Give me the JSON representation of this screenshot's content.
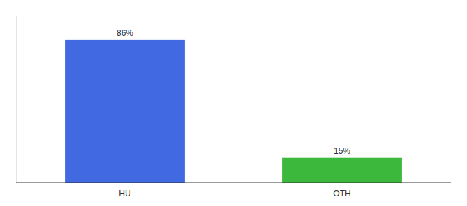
{
  "chart_data": {
    "type": "bar",
    "categories": [
      "HU",
      "OTH"
    ],
    "values": [
      86,
      15
    ],
    "value_labels": [
      "86%",
      "15%"
    ],
    "colors": [
      "#4169e1",
      "#3cb83c"
    ],
    "ylim": [
      0,
      100
    ],
    "data_labels": true,
    "tick_labels": "x",
    "grid": false
  }
}
